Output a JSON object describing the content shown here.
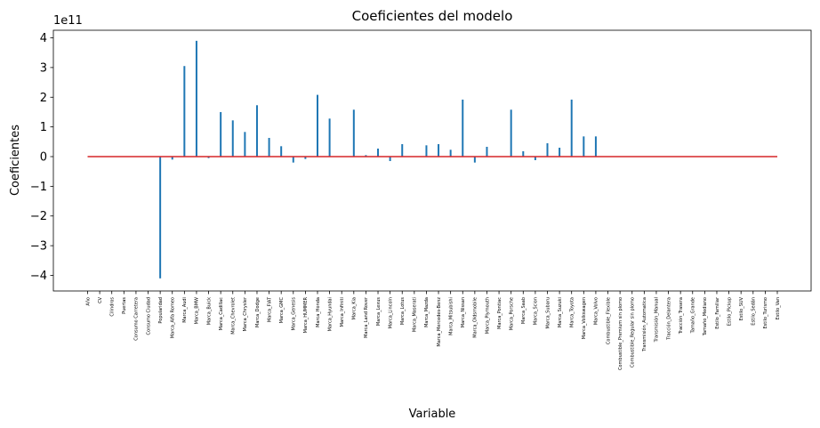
{
  "chart_data": {
    "type": "bar",
    "title": "Coeficientes del modelo",
    "xlabel": "Variable",
    "ylabel": "Coeficientes",
    "y_offset_label": "1e11",
    "ylim": [
      -4.5,
      4.5
    ],
    "yticks": [
      -4,
      -3,
      -2,
      -1,
      0,
      1,
      2,
      3,
      4
    ],
    "grid": false,
    "bar_color": "#1f77b4",
    "baseline_color": "#d62728",
    "categories": [
      "Año",
      "CV",
      "Cilindros",
      "Puertas",
      "Consumo Carretera",
      "Consumo Ciudad",
      "Popularidad",
      "Marca_Alfa Romeo",
      "Marca_Audi",
      "Marca_BMW",
      "Marca_Buick",
      "Marca_Cadillac",
      "Marca_Chevrolet",
      "Marca_Chrysler",
      "Marca_Dodge",
      "Marca_FIAT",
      "Marca_GMC",
      "Marca_Genesis",
      "Marca_HUMMER",
      "Marca_Honda",
      "Marca_Hyundai",
      "Marca_Infiniti",
      "Marca_Kia",
      "Marca_Land Rover",
      "Marca_Lexus",
      "Marca_Lincoln",
      "Marca_Lotus",
      "Marca_Maserati",
      "Marca_Mazda",
      "Marca_Mercedes-Benz",
      "Marca_Mitsubishi",
      "Marca_Nissan",
      "Marca_Oldsmobile",
      "Marca_Plymouth",
      "Marca_Pontiac",
      "Marca_Porsche",
      "Marca_Saab",
      "Marca_Scion",
      "Marca_Subaru",
      "Marca_Suzuki",
      "Marca_Toyota",
      "Marca_Volkswagen",
      "Marca_Volvo",
      "Combustible_Flexible",
      "Combustible_Premium sin plomo",
      "Combustible_Regular sin plomo",
      "Transmisión_Automatica",
      "Transmisión_Manual",
      "Tracción_Delantera",
      "Tracción_Trasera",
      "Tamaño_Grande",
      "Tamaño_Mediano",
      "Estilo_Familiar",
      "Estilo_Pickup",
      "Estilo_SUV",
      "Estilo_Sedán",
      "Estilo_Turismo",
      "Estilo_Van"
    ],
    "values": [
      0,
      0,
      0,
      0,
      0,
      0,
      -4.1,
      -0.1,
      3.05,
      3.9,
      -0.05,
      1.5,
      1.22,
      0.83,
      1.73,
      0.63,
      0.35,
      -0.2,
      -0.08,
      2.08,
      1.28,
      0,
      1.58,
      0.05,
      0.27,
      -0.15,
      0.42,
      0,
      0.38,
      0.42,
      0.23,
      1.92,
      -0.2,
      0.33,
      0,
      1.58,
      0.18,
      -0.12,
      0.45,
      0.3,
      1.92,
      0.68,
      0.68,
      0,
      0,
      0,
      0,
      0,
      0,
      0,
      0,
      0,
      0,
      0,
      0,
      0,
      0,
      0
    ]
  }
}
